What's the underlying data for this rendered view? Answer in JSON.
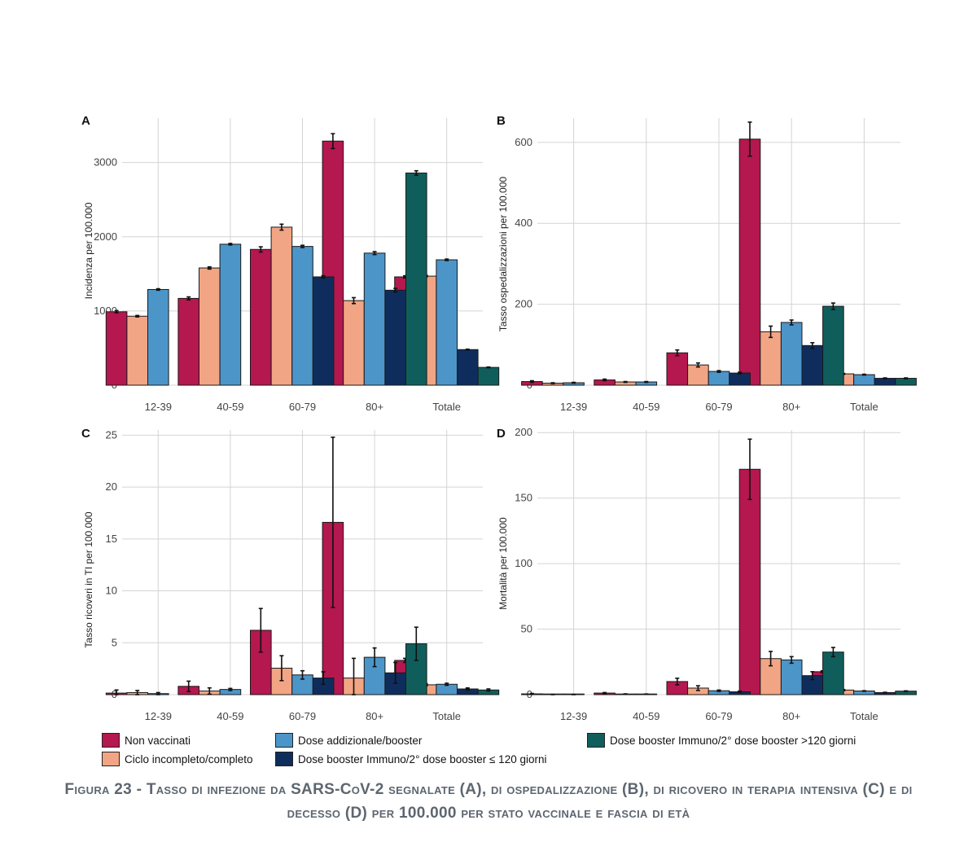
{
  "caption": "Figura 23 - Tasso di infezione da SARS-CoV-2 segnalate (A), di ospedalizzazione (B), di ricovero in terapia intensiva (C) e di decesso (D) per 100.000 per stato vaccinale e fascia di età",
  "legend": [
    {
      "name": "Non vaccinati",
      "color": "#b5174f"
    },
    {
      "name": "Ciclo incompleto/completo",
      "color": "#f2a584"
    },
    {
      "name": "Dose addizionale/booster",
      "color": "#4c95c9"
    },
    {
      "name": "Dose booster Immuno/2° dose booster ≤ 120 giorni",
      "color": "#0f2d5c"
    },
    {
      "name": "Dose booster Immuno/2° dose booster >120 giorni",
      "color": "#105e5b"
    }
  ],
  "chart_data": [
    {
      "panel": "A",
      "type": "bar",
      "ylabel": "Incidenza per 100.000",
      "ylim": [
        0,
        3600
      ],
      "yticks": [
        0,
        1000,
        2000,
        3000
      ],
      "categories": [
        "12-39",
        "40-59",
        "60-79",
        "80+",
        "Totale"
      ],
      "series": [
        {
          "name": "Non vaccinati",
          "values": [
            990,
            1170,
            1830,
            3290,
            1460
          ],
          "err": [
            15,
            20,
            35,
            100,
            15
          ]
        },
        {
          "name": "Ciclo incompleto/completo",
          "values": [
            930,
            1580,
            2130,
            1140,
            1470
          ],
          "err": [
            10,
            15,
            40,
            40,
            10
          ]
        },
        {
          "name": "Dose addizionale/booster",
          "values": [
            1290,
            1900,
            1870,
            1780,
            1690
          ],
          "err": [
            10,
            10,
            15,
            20,
            10
          ]
        },
        {
          "name": "Dose booster Immuno/2° dose booster ≤ 120 giorni",
          "values": [
            null,
            null,
            1460,
            1280,
            480
          ],
          "err": [
            null,
            null,
            15,
            25,
            5
          ]
        },
        {
          "name": "Dose booster Immuno/2° dose booster >120 giorni",
          "values": [
            null,
            null,
            null,
            2860,
            240
          ],
          "err": [
            null,
            null,
            null,
            30,
            5
          ]
        }
      ]
    },
    {
      "panel": "B",
      "type": "bar",
      "ylabel": "Tasso ospedalizzazioni per 100.000",
      "ylim": [
        0,
        660
      ],
      "yticks": [
        0,
        200,
        400,
        600
      ],
      "categories": [
        "12-39",
        "40-59",
        "60-79",
        "80+",
        "Totale"
      ],
      "series": [
        {
          "name": "Non vaccinati",
          "values": [
            9,
            13,
            80,
            608,
            78
          ],
          "err": [
            2,
            2,
            7,
            42,
            2
          ]
        },
        {
          "name": "Ciclo incompleto/completo",
          "values": [
            5,
            8,
            50,
            132,
            28
          ],
          "err": [
            1,
            1,
            5,
            14,
            1
          ]
        },
        {
          "name": "Dose addizionale/booster",
          "values": [
            6,
            8,
            34,
            155,
            26
          ],
          "err": [
            1,
            1,
            2,
            6,
            1
          ]
        },
        {
          "name": "Dose booster Immuno/2° dose booster ≤ 120 giorni",
          "values": [
            null,
            null,
            30,
            98,
            17
          ],
          "err": [
            null,
            null,
            2,
            7,
            1
          ]
        },
        {
          "name": "Dose booster Immuno/2° dose booster >120 giorni",
          "values": [
            null,
            null,
            null,
            195,
            17
          ],
          "err": [
            null,
            null,
            null,
            8,
            1
          ]
        }
      ]
    },
    {
      "panel": "C",
      "type": "bar",
      "ylabel": "Tasso ricoveri in TI per 100.000",
      "ylim": [
        0,
        25.5
      ],
      "yticks": [
        0,
        5,
        10,
        15,
        20,
        25
      ],
      "categories": [
        "12-39",
        "40-59",
        "60-79",
        "80+",
        "Totale"
      ],
      "series": [
        {
          "name": "Non vaccinati",
          "values": [
            0.15,
            0.8,
            6.2,
            16.6,
            3.3
          ],
          "err": [
            0.3,
            0.5,
            2.1,
            8.2,
            0.2
          ]
        },
        {
          "name": "Ciclo incompleto/completo",
          "values": [
            0.2,
            0.35,
            2.55,
            1.6,
            0.95
          ],
          "err": [
            0.2,
            0.3,
            1.2,
            1.9,
            0.1
          ]
        },
        {
          "name": "Dose addizionale/booster",
          "values": [
            0.1,
            0.5,
            1.9,
            3.6,
            1.0
          ],
          "err": [
            0.1,
            0.1,
            0.4,
            0.9,
            0.1
          ]
        },
        {
          "name": "Dose booster Immuno/2° dose booster ≤ 120 giorni",
          "values": [
            null,
            null,
            1.6,
            2.1,
            0.55
          ],
          "err": [
            null,
            null,
            0.6,
            1.0,
            0.1
          ]
        },
        {
          "name": "Dose booster Immuno/2° dose booster >120 giorni",
          "values": [
            null,
            null,
            null,
            4.9,
            0.45
          ],
          "err": [
            null,
            null,
            null,
            1.6,
            0.1
          ]
        }
      ]
    },
    {
      "panel": "D",
      "type": "bar",
      "ylabel": "Mortalità per 100.000",
      "ylim": [
        0,
        202
      ],
      "yticks": [
        0,
        50,
        100,
        150,
        200
      ],
      "categories": [
        "12-39",
        "40-59",
        "60-79",
        "80+",
        "Totale"
      ],
      "series": [
        {
          "name": "Non vaccinati",
          "values": [
            0.6,
            1.2,
            10,
            172,
            17.5
          ],
          "err": [
            0.3,
            0.4,
            2.5,
            23,
            0.7
          ]
        },
        {
          "name": "Ciclo incompleto/completo",
          "values": [
            0.1,
            0.4,
            5,
            27.5,
            3.5
          ],
          "err": [
            0.1,
            0.2,
            1.8,
            5.5,
            0.4
          ]
        },
        {
          "name": "Dose addizionale/booster",
          "values": [
            0.1,
            0.4,
            3,
            26.5,
            2.8
          ],
          "err": [
            0.1,
            0.1,
            0.5,
            2.5,
            0.2
          ]
        },
        {
          "name": "Dose booster Immuno/2° dose booster ≤ 120 giorni",
          "values": [
            null,
            null,
            2.2,
            14.5,
            1.6
          ],
          "err": [
            null,
            null,
            0.5,
            3,
            0.2
          ]
        },
        {
          "name": "Dose booster Immuno/2° dose booster >120 giorni",
          "values": [
            null,
            null,
            null,
            32.5,
            2.7
          ],
          "err": [
            null,
            null,
            null,
            3.5,
            0.2
          ]
        }
      ]
    }
  ]
}
